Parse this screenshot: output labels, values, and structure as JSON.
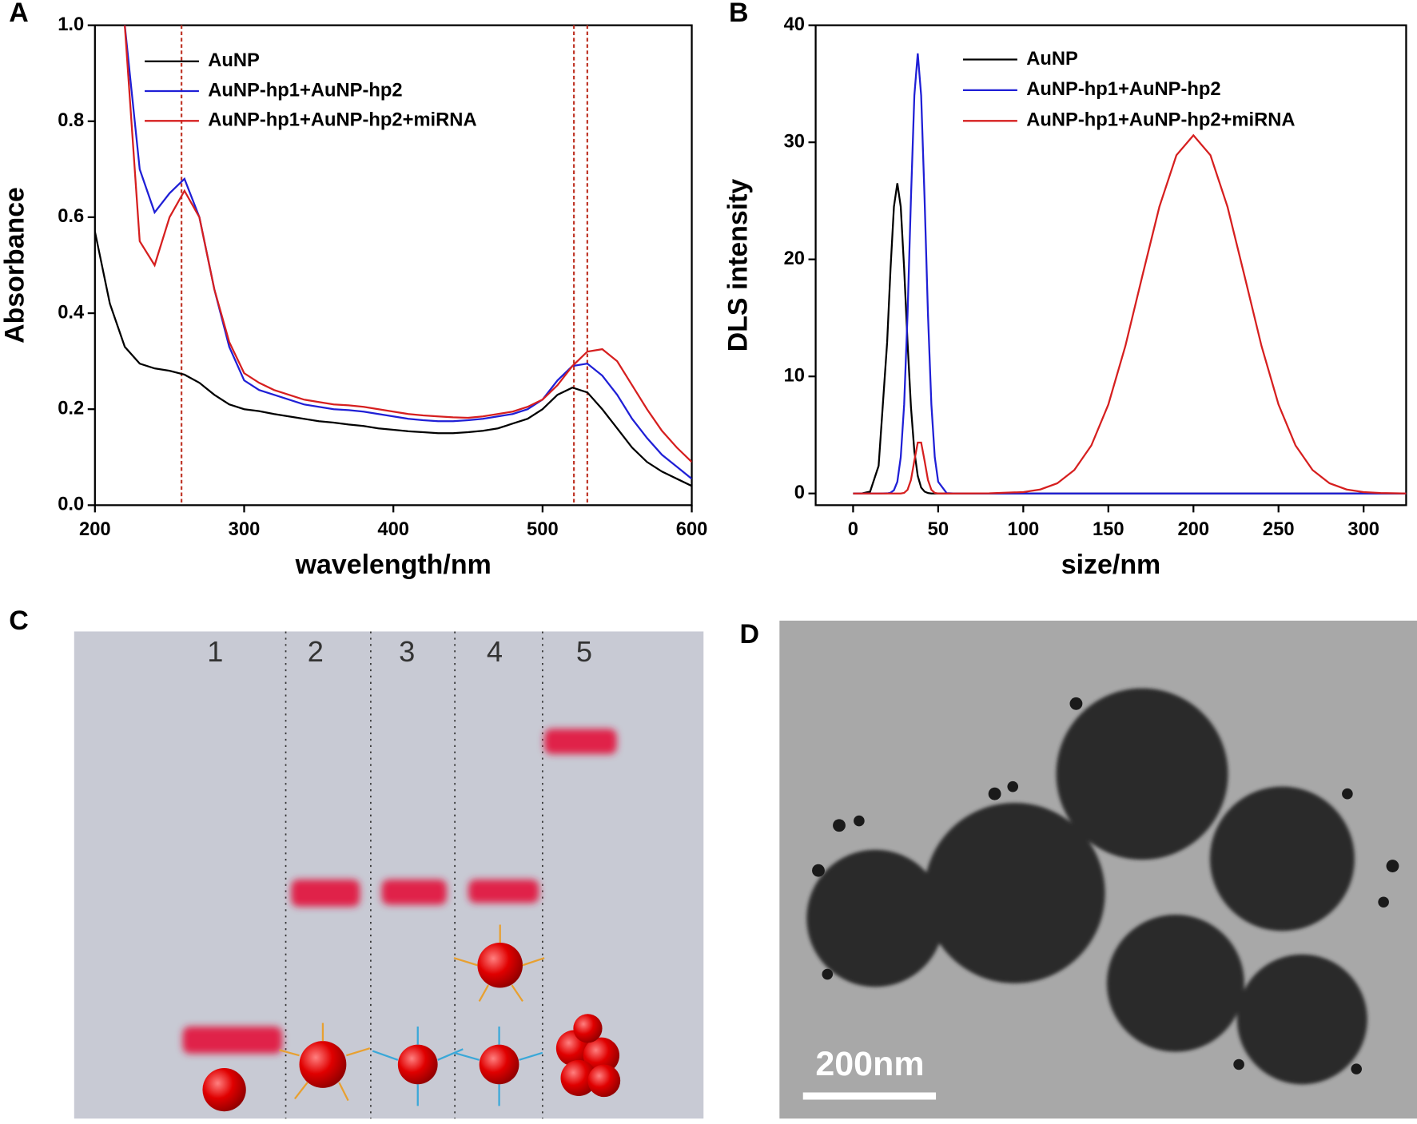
{
  "chart_data": [
    {
      "type": "line",
      "panel": "A",
      "x_label": "wavelength/nm",
      "y_label": "Absorbance",
      "xlim": [
        200,
        600
      ],
      "ylim": [
        0,
        1
      ],
      "xticks": [
        200,
        300,
        400,
        500,
        600
      ],
      "yticks": [
        {
          "value": 0,
          "label": "0.0"
        },
        0.2,
        0.4,
        0.6,
        0.8,
        {
          "value": 1,
          "label": "1.0"
        }
      ],
      "x": [
        200,
        210,
        220,
        230,
        240,
        250,
        260,
        270,
        280,
        290,
        300,
        310,
        320,
        330,
        340,
        350,
        360,
        370,
        380,
        390,
        400,
        410,
        420,
        430,
        440,
        450,
        460,
        470,
        480,
        490,
        500,
        510,
        520,
        530,
        540,
        550,
        560,
        570,
        580,
        590,
        600
      ],
      "series": [
        {
          "name": "AuNP",
          "color": "#000000",
          "values": [
            0.57,
            0.42,
            0.33,
            0.295,
            0.285,
            0.28,
            0.272,
            0.255,
            0.23,
            0.21,
            0.2,
            0.196,
            0.19,
            0.185,
            0.18,
            0.175,
            0.172,
            0.168,
            0.165,
            0.16,
            0.157,
            0.154,
            0.152,
            0.15,
            0.15,
            0.152,
            0.155,
            0.16,
            0.17,
            0.18,
            0.2,
            0.23,
            0.245,
            0.235,
            0.2,
            0.16,
            0.12,
            0.09,
            0.07,
            0.055,
            0.04
          ]
        },
        {
          "name": "AuNP-hp1+AuNP-hp2",
          "color": "#1f1fd6",
          "values": [
            null,
            null,
            1.0,
            0.7,
            0.61,
            0.65,
            0.68,
            0.6,
            0.45,
            0.33,
            0.26,
            0.24,
            0.23,
            0.22,
            0.21,
            0.205,
            0.2,
            0.198,
            0.195,
            0.19,
            0.185,
            0.18,
            0.177,
            0.175,
            0.175,
            0.177,
            0.18,
            0.185,
            0.19,
            0.2,
            0.22,
            0.26,
            0.29,
            0.295,
            0.27,
            0.23,
            0.18,
            0.14,
            0.105,
            0.08,
            0.055
          ]
        },
        {
          "name": "AuNP-hp1+AuNP-hp2+miRNA",
          "color": "#d61f1f",
          "values": [
            null,
            null,
            1.0,
            0.55,
            0.5,
            0.6,
            0.655,
            0.6,
            0.45,
            0.34,
            0.275,
            0.255,
            0.24,
            0.23,
            0.22,
            0.215,
            0.21,
            0.208,
            0.205,
            0.2,
            0.195,
            0.19,
            0.187,
            0.185,
            0.183,
            0.182,
            0.185,
            0.19,
            0.195,
            0.205,
            0.22,
            0.25,
            0.29,
            0.32,
            0.325,
            0.3,
            0.25,
            0.2,
            0.155,
            0.12,
            0.09
          ]
        }
      ],
      "reference_lines": [
        258,
        521,
        530
      ],
      "reference_color": "#c0392b"
    },
    {
      "type": "line",
      "panel": "B",
      "x_label": "size/nm",
      "y_label": "DLS intensity",
      "xlim": [
        -22,
        325
      ],
      "ylim": [
        -1,
        40
      ],
      "xticks": [
        0,
        50,
        100,
        150,
        200,
        250,
        300
      ],
      "yticks": [
        0,
        10,
        20,
        30,
        40
      ],
      "x": [
        0,
        5,
        10,
        15,
        20,
        22,
        24,
        26,
        28,
        30,
        32,
        34,
        36,
        38,
        40,
        42,
        44,
        46,
        48,
        50,
        55,
        60,
        80,
        100,
        110,
        120,
        130,
        140,
        150,
        160,
        170,
        180,
        190,
        200,
        210,
        220,
        230,
        240,
        250,
        260,
        270,
        280,
        290,
        300,
        310,
        320,
        325
      ],
      "series": [
        {
          "name": "AuNP",
          "color": "#000000",
          "values": [
            0,
            0,
            0.16,
            2.36,
            12.9,
            19.2,
            24.5,
            26.5,
            24.5,
            19.2,
            12.9,
            7.4,
            3.6,
            1.5,
            0.5,
            0.16,
            0.04,
            0,
            0,
            0,
            0,
            0,
            0,
            0,
            0,
            0,
            0,
            0,
            0,
            0,
            0,
            0,
            0,
            0,
            0,
            0,
            0,
            0,
            0,
            0,
            0,
            0,
            0,
            0,
            0,
            0,
            0
          ]
        },
        {
          "name": "AuNP-hp1+AuNP-hp2",
          "color": "#1f1fd6",
          "values": [
            0,
            0,
            0,
            0,
            0.01,
            0.06,
            0.28,
            1.0,
            3.1,
            7.6,
            15.3,
            25.2,
            34.0,
            37.6,
            34.0,
            25.2,
            15.3,
            7.6,
            3.1,
            1.0,
            0.03,
            0,
            0,
            0,
            0,
            0,
            0,
            0,
            0,
            0,
            0,
            0,
            0,
            0,
            0,
            0,
            0,
            0,
            0,
            0,
            0,
            0,
            0,
            0,
            0,
            0,
            0
          ]
        },
        {
          "name": "AuNP-hp1+AuNP-hp2+miRNA",
          "color": "#d61f1f",
          "values": [
            0,
            0,
            0,
            0,
            0,
            0,
            0,
            0,
            0,
            0.05,
            0.31,
            1.15,
            2.8,
            4.35,
            4.35,
            2.8,
            1.15,
            0.31,
            0.05,
            0,
            0,
            0,
            0.01,
            0.12,
            0.34,
            0.87,
            2.0,
            4.1,
            7.6,
            12.6,
            18.6,
            24.5,
            28.9,
            30.6,
            28.9,
            24.5,
            18.6,
            12.6,
            7.6,
            4.1,
            2.0,
            0.87,
            0.34,
            0.12,
            0.04,
            0.01,
            0
          ]
        }
      ]
    }
  ],
  "gel": {
    "panel": "C",
    "lanes": [
      "1",
      "2",
      "3",
      "4",
      "5"
    ]
  },
  "tem": {
    "panel": "D",
    "scale_bar": "200nm"
  }
}
